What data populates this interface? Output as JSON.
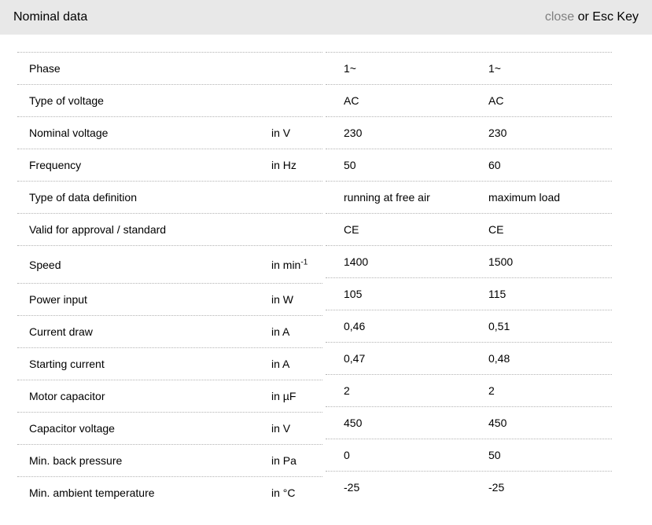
{
  "header": {
    "title": "Nominal data",
    "close_label": "close",
    "close_suffix": " or Esc Key"
  },
  "colors": {
    "header_bg": "#e8e8e8",
    "text": "#000000",
    "close_link": "#7f7f7f",
    "row_border": "#b3b3b3"
  },
  "table": {
    "columns": [
      "parameter",
      "unit",
      "value_condition_1",
      "value_condition_2"
    ],
    "rows": [
      {
        "label": "Phase",
        "unit": "",
        "v1": "1~",
        "v2": "1~"
      },
      {
        "label": "Type of voltage",
        "unit": "",
        "v1": "AC",
        "v2": "AC"
      },
      {
        "label": "Nominal voltage",
        "unit": "in V",
        "v1": "230",
        "v2": "230"
      },
      {
        "label": "Frequency",
        "unit": "in Hz",
        "v1": "50",
        "v2": "60"
      },
      {
        "label": "Type of data definition",
        "unit": "",
        "v1": "running at free air",
        "v2": "maximum load"
      },
      {
        "label": "Valid for approval / standard",
        "unit": "",
        "v1": "CE",
        "v2": "CE"
      },
      {
        "label": "Speed",
        "unit": "in min",
        "unit_sup": "-1",
        "v1": "1400",
        "v2": "1500"
      },
      {
        "label": "Power input",
        "unit": "in W",
        "v1": "105",
        "v2": "115"
      },
      {
        "label": "Current draw",
        "unit": "in A",
        "v1": "0,46",
        "v2": "0,51"
      },
      {
        "label": "Starting current",
        "unit": "in A",
        "v1": "0,47",
        "v2": "0,48"
      },
      {
        "label": "Motor capacitor",
        "unit": "in µF",
        "v1": "2",
        "v2": "2"
      },
      {
        "label": "Capacitor voltage",
        "unit": "in V",
        "v1": "450",
        "v2": "450"
      },
      {
        "label": "Min. back pressure",
        "unit": "in Pa",
        "v1": "0",
        "v2": "50"
      },
      {
        "label": "Min. ambient temperature",
        "unit": "in °C",
        "v1": "-25",
        "v2": "-25"
      }
    ]
  }
}
